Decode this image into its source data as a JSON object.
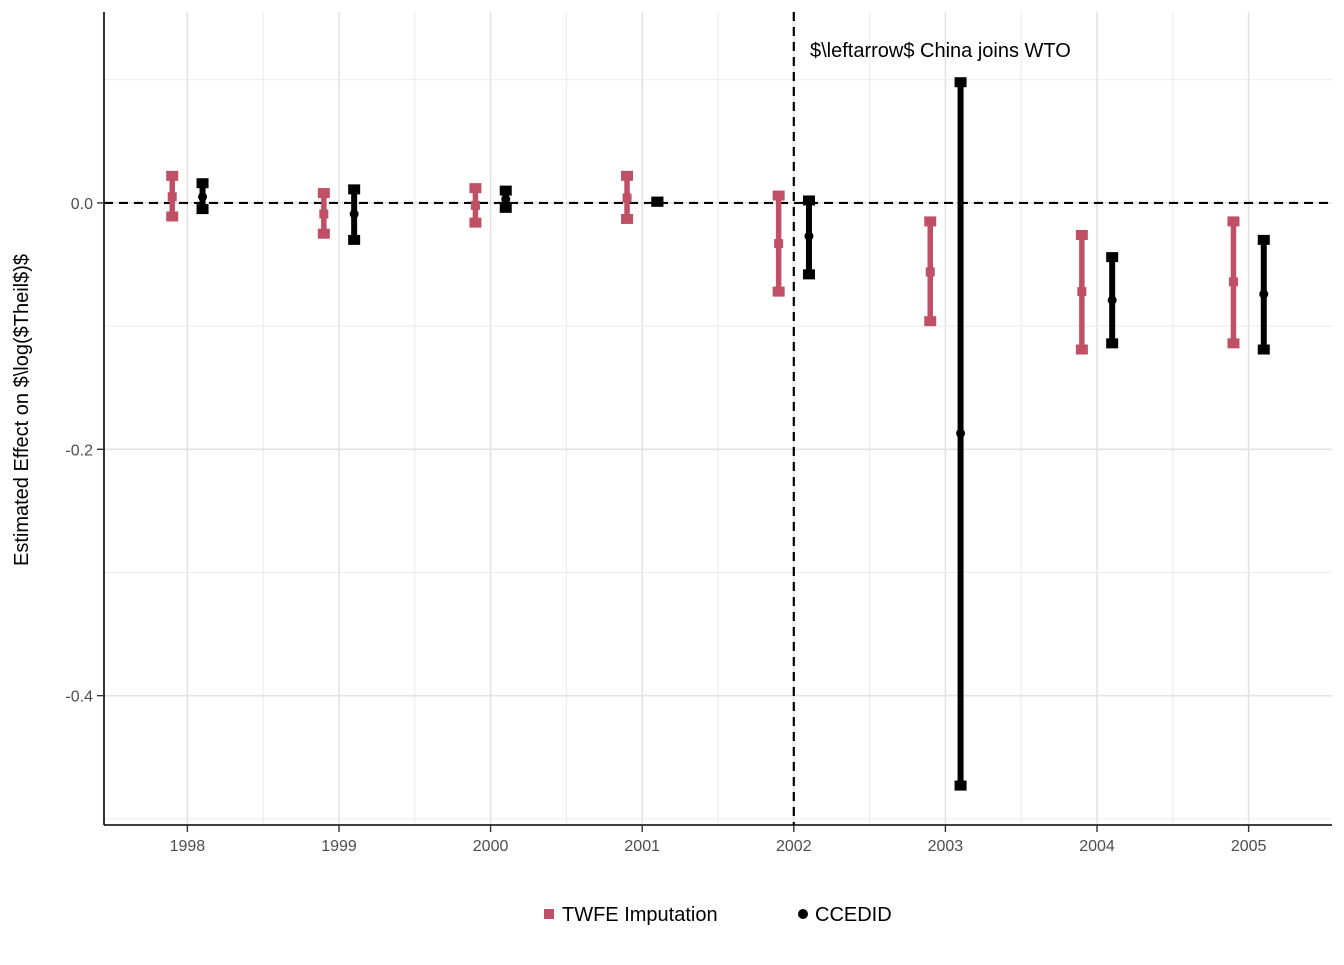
{
  "chart_data": {
    "type": "errorbar",
    "title": "",
    "xlabel": "",
    "ylabel": "Estimated Effect on $\\log($Theil$)$",
    "annotation": "$\\leftarrow$ China joins WTO",
    "annotation_x": 2002,
    "reference_line_y": 0,
    "xlim": [
      1997.45,
      2005.55
    ],
    "ylim": [
      -0.505,
      0.155
    ],
    "x_ticks": [
      1998,
      1999,
      2000,
      2001,
      2002,
      2003,
      2004,
      2005
    ],
    "x_tick_labels": [
      "1998",
      "1999",
      "2000",
      "2001",
      "2002",
      "2003",
      "2004",
      "2005"
    ],
    "y_ticks": [
      0.0,
      -0.2,
      -0.4
    ],
    "y_tick_labels": [
      "0.0",
      "-0.2",
      "-0.4"
    ],
    "grid": true,
    "legend_position": "bottom",
    "series": [
      {
        "name": "TWFE Imputation",
        "color": "#c05066",
        "marker": "square",
        "offset": -0.1,
        "points": [
          {
            "x": 1998,
            "estimate": 0.005,
            "lower": -0.011,
            "upper": 0.022
          },
          {
            "x": 1999,
            "estimate": -0.009,
            "lower": -0.025,
            "upper": 0.008
          },
          {
            "x": 2000,
            "estimate": -0.002,
            "lower": -0.016,
            "upper": 0.012
          },
          {
            "x": 2001,
            "estimate": 0.004,
            "lower": -0.013,
            "upper": 0.022
          },
          {
            "x": 2002,
            "estimate": -0.033,
            "lower": -0.072,
            "upper": 0.006
          },
          {
            "x": 2003,
            "estimate": -0.056,
            "lower": -0.096,
            "upper": -0.015
          },
          {
            "x": 2004,
            "estimate": -0.072,
            "lower": -0.119,
            "upper": -0.026
          },
          {
            "x": 2005,
            "estimate": -0.064,
            "lower": -0.114,
            "upper": -0.015
          }
        ]
      },
      {
        "name": "CCEDID",
        "color": "#000000",
        "marker": "circle",
        "offset": 0.1,
        "points": [
          {
            "x": 1998,
            "estimate": 0.005,
            "lower": -0.005,
            "upper": 0.016
          },
          {
            "x": 1999,
            "estimate": -0.009,
            "lower": -0.03,
            "upper": 0.011
          },
          {
            "x": 2000,
            "estimate": 0.003,
            "lower": -0.004,
            "upper": 0.01
          },
          {
            "x": 2001,
            "estimate": 0.001,
            "lower": 0.001,
            "upper": 0.001
          },
          {
            "x": 2002,
            "estimate": -0.027,
            "lower": -0.058,
            "upper": 0.002
          },
          {
            "x": 2003,
            "estimate": -0.187,
            "lower": -0.473,
            "upper": 0.098
          },
          {
            "x": 2004,
            "estimate": -0.079,
            "lower": -0.114,
            "upper": -0.044
          },
          {
            "x": 2005,
            "estimate": -0.074,
            "lower": -0.119,
            "upper": -0.03
          }
        ]
      }
    ]
  }
}
